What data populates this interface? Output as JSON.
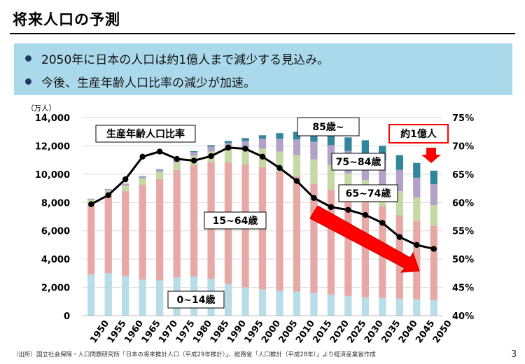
{
  "slide": {
    "title": "将来人口の予測",
    "bullets": [
      "2050年に日本の人口は約1億人まで減少する見込み。",
      "今後、生産年齢人口比率の減少が加速。"
    ],
    "source": "（出所）国立社会保障・人口問題研究所「日本の将来推計人口（平成29年推計）」、総務省「人口推計（平成28年）」より経済産業省作成",
    "page_number": "3"
  },
  "colors": {
    "age_0_14": "#b7dde8",
    "age_15_64": "#e6a9a6",
    "age_65_74": "#c4d9a3",
    "age_75_84": "#b3a2c7",
    "age_85_plus": "#31859c",
    "ratio_line": "#000000",
    "arrow_fill": "#ff0000",
    "callout_border": "#ff0000",
    "summary_bg": "#abd9ec",
    "bullet": "#1f3864"
  },
  "chart_data": {
    "type": "bar",
    "stacked": true,
    "categories": [
      "1950",
      "1955",
      "1960",
      "1965",
      "1970",
      "1975",
      "1980",
      "1985",
      "1990",
      "1995",
      "2000",
      "2005",
      "2010",
      "2015",
      "2020",
      "2025",
      "2030",
      "2035",
      "2040",
      "2045",
      "2050"
    ],
    "y_unit": "（万人）",
    "ylim": [
      0,
      14000
    ],
    "yticks": [
      "0",
      "2,000",
      "4,000",
      "6,000",
      "8,000",
      "10,000",
      "12,000",
      "14,000"
    ],
    "y2lim": [
      40,
      75
    ],
    "y2ticks": [
      "40%",
      "45%",
      "50%",
      "55%",
      "60%",
      "65%",
      "70%",
      "75%"
    ],
    "series": [
      {
        "name": "0~14歳",
        "values": [
          2900,
          3000,
          2800,
          2550,
          2500,
          2700,
          2750,
          2600,
          2250,
          2000,
          1850,
          1750,
          1700,
          1600,
          1500,
          1400,
          1300,
          1250,
          1200,
          1150,
          1100
        ]
      },
      {
        "name": "15~64歳",
        "values": [
          5000,
          5500,
          6000,
          6700,
          7150,
          7600,
          7900,
          8250,
          8600,
          8700,
          8650,
          8450,
          8150,
          7700,
          7400,
          7150,
          6900,
          6500,
          5900,
          5550,
          5250
        ]
      },
      {
        "name": "65~74歳",
        "values": [
          300,
          350,
          400,
          450,
          500,
          550,
          650,
          750,
          900,
          1100,
          1300,
          1400,
          1500,
          1750,
          1750,
          1500,
          1400,
          1500,
          1700,
          1650,
          1450
        ]
      },
      {
        "name": "75~84歳",
        "values": [
          60,
          80,
          100,
          130,
          160,
          200,
          260,
          350,
          450,
          550,
          700,
          900,
          1100,
          1250,
          1400,
          1600,
          1800,
          1700,
          1500,
          1400,
          1500
        ]
      },
      {
        "name": "85歳~",
        "values": [
          10,
          15,
          20,
          30,
          40,
          50,
          70,
          100,
          150,
          200,
          250,
          400,
          550,
          700,
          800,
          950,
          1000,
          1050,
          1050,
          1050,
          950
        ]
      }
    ],
    "line": {
      "name": "生産年齢人口比率",
      "values": [
        59.7,
        61.3,
        64.1,
        68.1,
        69.0,
        67.7,
        67.4,
        68.2,
        69.7,
        69.5,
        68.1,
        66.1,
        63.8,
        60.8,
        59.2,
        58.7,
        57.8,
        56.4,
        53.9,
        52.5,
        51.8
      ]
    },
    "annotations": {
      "ratio_label": "生産年齢人口比率",
      "age_85": "85歳~",
      "age_75_84": "75~84歳",
      "age_65_74": "65~74歳",
      "age_15_64": "15~64歳",
      "age_0_14": "0~14歳",
      "approx_100m": "約1億人"
    }
  }
}
